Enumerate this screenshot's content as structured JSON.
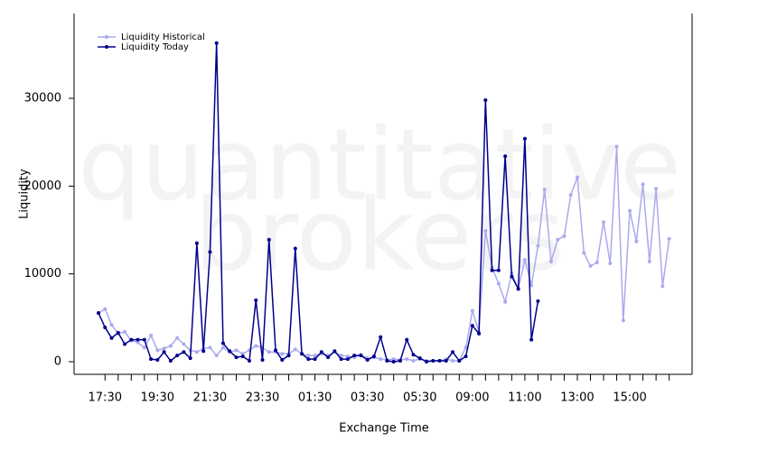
{
  "chart_data": {
    "type": "line",
    "watermark": [
      "quantitative",
      "brokers"
    ],
    "xlabel": "Exchange Time",
    "ylabel": "Liquidity",
    "legend": "top-left",
    "categories": [
      null,
      "17:30",
      null,
      null,
      null,
      null,
      null,
      null,
      null,
      "19:30",
      null,
      null,
      null,
      null,
      null,
      null,
      null,
      "21:30",
      null,
      null,
      null,
      null,
      null,
      null,
      null,
      "23:30",
      null,
      null,
      null,
      null,
      null,
      null,
      null,
      "01:30",
      null,
      null,
      null,
      null,
      null,
      null,
      null,
      "03:30",
      null,
      null,
      null,
      null,
      null,
      null,
      null,
      "05:30",
      null,
      null,
      null,
      null,
      null,
      null,
      null,
      "09:00",
      null,
      null,
      null,
      null,
      null,
      null,
      null,
      "11:00",
      null,
      null,
      null,
      null,
      null,
      null,
      null,
      "13:00",
      null,
      null,
      null,
      null,
      null,
      null,
      null,
      "15:00",
      null,
      null,
      null,
      null,
      null,
      null
    ],
    "series": [
      {
        "name": "Liquidity Historical",
        "color": "#aaaaee",
        "values": [
          5550,
          6000,
          4200,
          3200,
          3400,
          2400,
          2200,
          1600,
          3000,
          1300,
          1500,
          1800,
          2700,
          2000,
          1300,
          1100,
          1500,
          1600,
          700,
          1600,
          1100,
          1300,
          900,
          1300,
          1800,
          1600,
          1100,
          1100,
          900,
          900,
          1400,
          900,
          700,
          700,
          900,
          700,
          1100,
          700,
          600,
          500,
          800,
          400,
          500,
          300,
          200,
          300,
          200,
          300,
          100,
          300,
          100,
          100,
          100,
          300,
          100,
          100,
          1600,
          5800,
          3400,
          14900,
          10700,
          8900,
          6800,
          10100,
          8300,
          11600,
          8700,
          13200,
          19600,
          11400,
          13900,
          14300,
          19000,
          21000,
          12400,
          10900,
          11300,
          15900,
          11200,
          24500,
          4700,
          17200,
          13700,
          20200,
          11400,
          19700,
          8600,
          14000
        ]
      },
      {
        "name": "Liquidity Today",
        "color": "#00008b",
        "values": [
          5550,
          3900,
          2700,
          3300,
          2000,
          2500,
          2500,
          2500,
          300,
          200,
          1100,
          100,
          700,
          1100,
          400,
          13500,
          1200,
          12500,
          36300,
          2100,
          1200,
          500,
          600,
          100,
          7000,
          200,
          13900,
          1300,
          200,
          700,
          12900,
          900,
          300,
          300,
          1100,
          500,
          1200,
          300,
          300,
          700,
          700,
          200,
          600,
          2800,
          100,
          0,
          100,
          2500,
          800,
          400,
          0,
          100,
          100,
          100,
          1100,
          100,
          600,
          4100,
          3200,
          29800,
          10400,
          10400,
          23400,
          9700,
          8300,
          25400,
          2500,
          6900,
          null,
          null,
          null,
          null,
          null,
          null,
          null,
          null,
          null,
          null,
          null,
          null,
          null,
          null,
          null,
          null,
          null,
          null,
          null,
          null
        ]
      }
    ],
    "ylim": [
      -1440,
      39660
    ],
    "yticks": [
      0,
      10000,
      20000,
      30000
    ]
  }
}
